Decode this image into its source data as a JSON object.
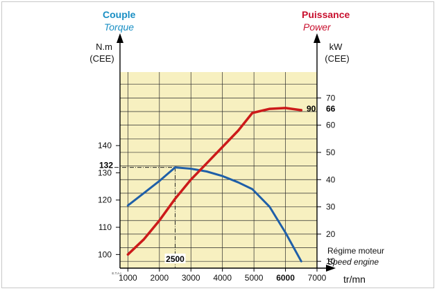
{
  "chart_data": {
    "type": "line",
    "title_left": "Couple",
    "subtitle_left": "Torque",
    "title_right": "Puissance",
    "subtitle_right": "Power",
    "left_unit": "N.m",
    "left_unit_note": "(CEE)",
    "right_unit": "kW",
    "right_unit_note": "(CEE)",
    "xlabel": "tr/mn",
    "xlabel_note_1": "Régime moteur",
    "xlabel_note_2": "Speed engine",
    "footnote": "E.T.A.I",
    "x_ticks": [
      "1000",
      "2000",
      "3000",
      "4000",
      "5000",
      "6000",
      "7000"
    ],
    "left_ticks": [
      "100",
      "110",
      "120",
      "130",
      "140"
    ],
    "right_ticks": [
      "10",
      "20",
      "30",
      "40",
      "50",
      "60",
      "70"
    ],
    "xlim": [
      750,
      7000
    ],
    "left_ylim": [
      95,
      167
    ],
    "right_ylim": [
      7.5,
      79.5
    ],
    "colors": {
      "torque": "#1f5fa8",
      "power": "#cc1a1a",
      "plot_bg": "#f7f0c0",
      "grid": "#2a2a2a",
      "left_title": "#1a8fc4",
      "right_title": "#c8102e"
    },
    "series": [
      {
        "name": "Couple",
        "axis": "left",
        "x": [
          1000,
          1500,
          2000,
          2500,
          3000,
          3500,
          4000,
          4500,
          4950,
          5500,
          6000,
          6500
        ],
        "y": [
          118,
          122.5,
          127,
          132,
          131.5,
          130.5,
          128.8,
          126.5,
          124,
          117.5,
          108,
          97.5
        ]
      },
      {
        "name": "Puissance",
        "axis": "right",
        "x": [
          1000,
          1500,
          2000,
          2500,
          3000,
          3500,
          4000,
          4500,
          4950,
          5500,
          6000,
          6500
        ],
        "y": [
          12.5,
          18,
          25,
          33,
          40,
          46,
          52,
          58,
          64.5,
          66,
          66.3,
          65.5
        ]
      }
    ],
    "annotations": {
      "torque_peak_value": "132",
      "torque_peak_rpm": "2500",
      "power_peak_value": "66",
      "power_peak_label": "90",
      "power_peak_rpm": "6000"
    }
  }
}
